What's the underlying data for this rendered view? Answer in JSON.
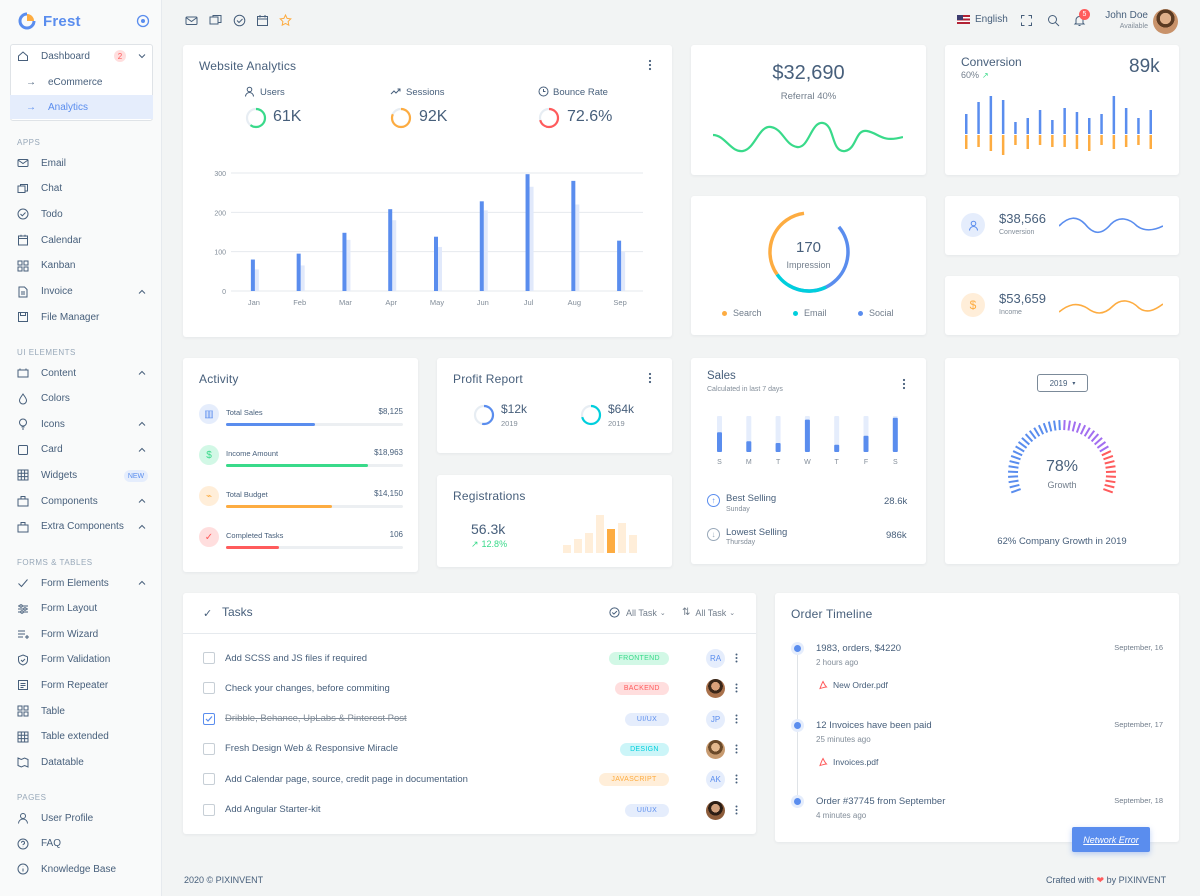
{
  "brand": {
    "name": "Frest"
  },
  "sidebar": {
    "dashboard": {
      "label": "Dashboard",
      "badge": "2",
      "sub": [
        "eCommerce",
        "Analytics"
      ]
    },
    "apps_head": "APPS",
    "apps": [
      "Email",
      "Chat",
      "Todo",
      "Calendar",
      "Kanban",
      "Invoice",
      "File Manager"
    ],
    "ui_head": "UI ELEMENTS",
    "ui": [
      "Content",
      "Colors",
      "Icons",
      "Card",
      "Widgets",
      "Components",
      "Extra Components"
    ],
    "widgets_badge": "NEW",
    "forms_head": "FORMS & TABLES",
    "forms": [
      "Form Elements",
      "Form Layout",
      "Form Wizard",
      "Form Validation",
      "Form Repeater",
      "Table",
      "Table extended",
      "Datatable"
    ],
    "pages_head": "PAGES",
    "pages": [
      "User Profile",
      "FAQ",
      "Knowledge Base"
    ]
  },
  "topbar": {
    "language": "English",
    "notif_count": "5",
    "user_name": "John Doe",
    "user_status": "Available"
  },
  "analytics": {
    "title": "Website Analytics",
    "stats": [
      {
        "label": "Users",
        "value": "61K"
      },
      {
        "label": "Sessions",
        "value": "92K"
      },
      {
        "label": "Bounce Rate",
        "value": "72.6%"
      }
    ],
    "chart_data": {
      "type": "bar",
      "categories": [
        "Jan",
        "Feb",
        "Mar",
        "Apr",
        "May",
        "Jun",
        "Jul",
        "Aug",
        "Sep"
      ],
      "series": [
        {
          "values": [
            80,
            95,
            148,
            208,
            138,
            228,
            297,
            280,
            128
          ]
        },
        {
          "values": [
            55,
            65,
            130,
            180,
            112,
            205,
            265,
            220,
            100
          ]
        }
      ],
      "yticks": [
        "0",
        "100",
        "200",
        "300"
      ],
      "ylim": [
        0,
        300
      ],
      "colors": [
        "#5a8dee",
        "#e1e9fb"
      ]
    }
  },
  "referral": {
    "value": "$32,690",
    "label": "Referral 40%"
  },
  "conversion": {
    "title": "Conversion",
    "percent": "60%",
    "value": "89k"
  },
  "impression": {
    "value": "170",
    "label": "Impression",
    "legend": [
      "Search",
      "Email",
      "Social"
    ]
  },
  "mini_stats": [
    {
      "value": "$38,566",
      "label": "Conversion"
    },
    {
      "value": "$53,659",
      "label": "Income"
    }
  ],
  "activity": {
    "title": "Activity",
    "items": [
      {
        "label": "Total Sales",
        "value": "$8,125",
        "progress": 0.5,
        "color": "#5a8dee"
      },
      {
        "label": "Income Amount",
        "value": "$18,963",
        "progress": 0.8,
        "color": "#39da8a"
      },
      {
        "label": "Total Budget",
        "value": "$14,150",
        "progress": 0.6,
        "color": "#fdac41"
      },
      {
        "label": "Completed Tasks",
        "value": "106",
        "progress": 0.3,
        "color": "#ff5b5c"
      }
    ]
  },
  "profit": {
    "title": "Profit Report",
    "items": [
      {
        "value": "$12k",
        "year": "2019"
      },
      {
        "value": "$64k",
        "year": "2019"
      }
    ]
  },
  "registrations": {
    "title": "Registrations",
    "value": "56.3k",
    "change": "12.8%"
  },
  "sales": {
    "title": "Sales",
    "subtitle": "Calculated in last 7 days",
    "days": [
      "S",
      "M",
      "T",
      "W",
      "T",
      "F",
      "S"
    ],
    "best": {
      "label": "Best Selling",
      "sub": "Sunday",
      "value": "28.6k"
    },
    "lowest": {
      "label": "Lowest Selling",
      "sub": "Thursday",
      "value": "986k"
    }
  },
  "growth": {
    "year": "2019",
    "value": "78%",
    "label": "Growth",
    "caption": "62% Company Growth in 2019"
  },
  "tasks": {
    "title": "Tasks",
    "filter1": "All Task",
    "filter2": "All Task",
    "items": [
      {
        "text": "Add SCSS and JS files if required",
        "tag": "FRONTEND",
        "av": "RA",
        "done": false
      },
      {
        "text": "Check your changes, before commiting",
        "tag": "BACKEND",
        "av": "",
        "done": false
      },
      {
        "text": "Dribble, Behance, UpLabs & Pinterest Post",
        "tag": "UI/UX",
        "av": "JP",
        "done": true
      },
      {
        "text": "Fresh Design Web & Responsive Miracle",
        "tag": "DESIGN",
        "av": "",
        "done": false
      },
      {
        "text": "Add Calendar page, source, credit page in documentation",
        "tag": "JAVASCRIPT",
        "av": "AK",
        "done": false
      },
      {
        "text": "Add Angular Starter-kit",
        "tag": "UI/UX",
        "av": "",
        "done": false
      }
    ]
  },
  "timeline": {
    "title": "Order Timeline",
    "items": [
      {
        "title": "1983, orders, $4220",
        "time": "2 hours ago",
        "date": "September, 16",
        "file": "New Order.pdf"
      },
      {
        "title": "12 Invoices have been paid",
        "time": "25 minutes ago",
        "date": "September, 17",
        "file": "Invoices.pdf"
      },
      {
        "title": "Order #37745 from September",
        "time": "4 minutes ago",
        "date": "September, 18",
        "file": ""
      }
    ]
  },
  "footer": {
    "left": "2020 © PIXINVENT",
    "right_pre": "Crafted with",
    "right_post": "by PIXINVENT"
  },
  "network_error": "Network Error"
}
